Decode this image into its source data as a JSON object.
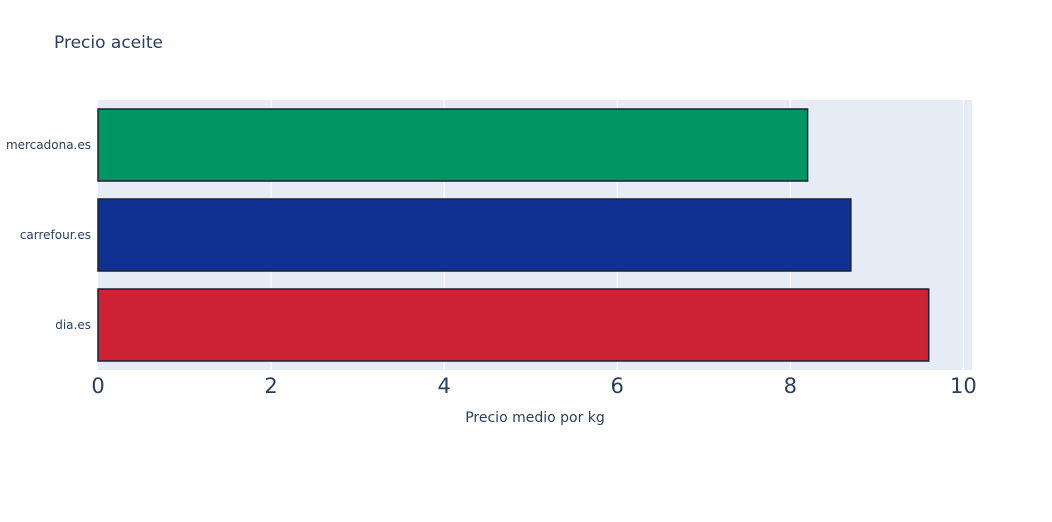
{
  "chart_data": {
    "type": "bar",
    "orientation": "horizontal",
    "title": "Precio aceite",
    "xlabel": "Precio medio por kg",
    "ylabel": "",
    "categories": [
      "mercadona.es",
      "carrefour.es",
      "dia.es"
    ],
    "values": [
      8.2,
      8.7,
      9.6
    ],
    "colors": [
      "#009562",
      "#113192",
      "#cc2233"
    ],
    "xlim": [
      0,
      10.1
    ],
    "xticks": [
      0,
      2,
      4,
      6,
      8,
      10
    ],
    "xtick_labels": [
      "0",
      "2",
      "4",
      "6",
      "8",
      "10"
    ],
    "grid": true,
    "legend": "none",
    "plot_background": "#e5ecf6",
    "bar_outline": "#1a2233"
  }
}
